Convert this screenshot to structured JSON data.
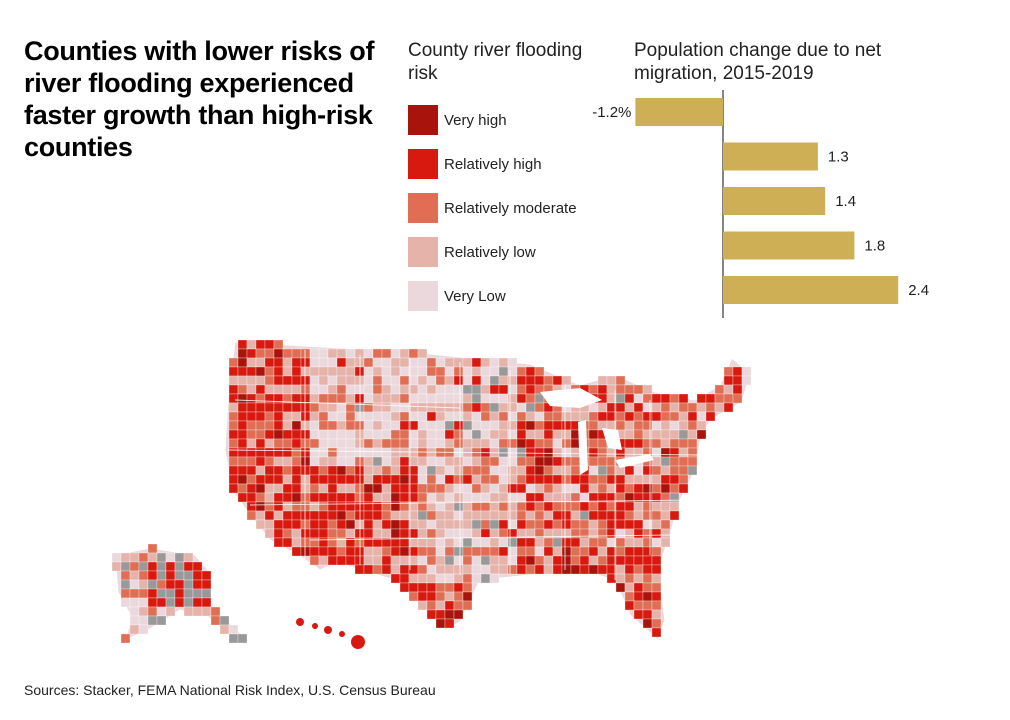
{
  "title": "Counties with lower risks of river flooding experienced faster growth than high-risk counties",
  "legend": {
    "title": "County river flooding risk",
    "items": [
      {
        "label": "Very high",
        "color": "#a8140c"
      },
      {
        "label": "Relatively high",
        "color": "#d8190f"
      },
      {
        "label": "Relatively moderate",
        "color": "#df6e55"
      },
      {
        "label": "Relatively low",
        "color": "#e6b3ab"
      },
      {
        "label": "Very Low",
        "color": "#ebd8dc"
      }
    ]
  },
  "chart_data": {
    "type": "bar",
    "orientation": "horizontal",
    "title": "Population change due to net migration, 2015-2019",
    "categories": [
      "Very high",
      "Relatively high",
      "Relatively moderate",
      "Relatively low",
      "Very Low"
    ],
    "values": [
      -1.2,
      1.3,
      1.4,
      1.8,
      2.4
    ],
    "value_labels": [
      "-1.2%",
      "1.3",
      "1.4",
      "1.8",
      "2.4"
    ],
    "unit": "%",
    "bar_color": "#cfaf55"
  },
  "map": {
    "colors": {
      "very_high": "#a8140c",
      "relatively_high": "#d8190f",
      "relatively_moderate": "#df6e55",
      "relatively_low": "#e6b3ab",
      "very_low": "#ebd8dc",
      "no_data": "#999999"
    }
  },
  "source": "Sources: Stacker, FEMA National Risk Index, U.S. Census Bureau"
}
